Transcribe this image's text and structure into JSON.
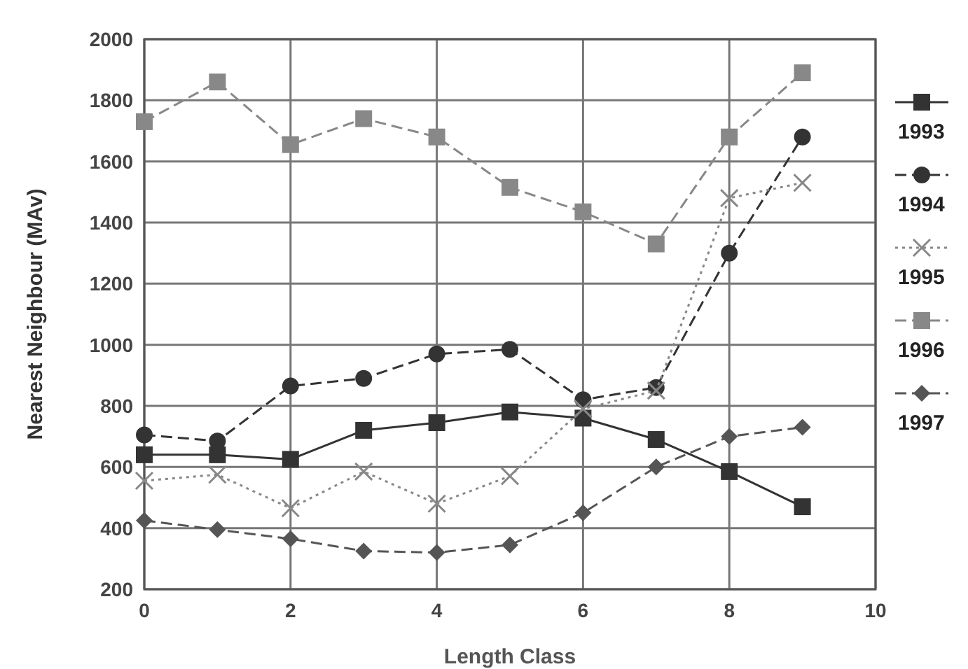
{
  "chart_data": {
    "type": "line",
    "xlabel": "Length Class",
    "ylabel": "Nearest Neighbour (MAv)",
    "x": [
      0,
      1,
      2,
      3,
      4,
      5,
      6,
      7,
      8,
      9
    ],
    "xlim": [
      0,
      10
    ],
    "xticks": [
      0,
      2,
      4,
      6,
      8,
      10
    ],
    "ylim": [
      200,
      2000
    ],
    "yticks": [
      200,
      400,
      600,
      800,
      1000,
      1200,
      1400,
      1600,
      1800,
      2000
    ],
    "grid": true,
    "legend": "right",
    "series": [
      {
        "name": "1993",
        "color": "#333333",
        "marker": "square",
        "line_style": "solid",
        "values": [
          640,
          640,
          625,
          720,
          745,
          780,
          760,
          690,
          585,
          470
        ]
      },
      {
        "name": "1994",
        "color": "#333333",
        "marker": "circle",
        "line_style": "dashed",
        "values": [
          705,
          685,
          865,
          890,
          970,
          985,
          820,
          860,
          1300,
          1680
        ]
      },
      {
        "name": "1995",
        "color": "#888888",
        "marker": "cross",
        "line_style": "dotted",
        "values": [
          555,
          575,
          465,
          585,
          480,
          570,
          790,
          850,
          1480,
          1530
        ]
      },
      {
        "name": "1996",
        "color": "#888888",
        "marker": "square",
        "line_style": "dashed",
        "values": [
          1730,
          1860,
          1655,
          1740,
          1680,
          1515,
          1435,
          1330,
          1680,
          1890
        ]
      },
      {
        "name": "1997",
        "color": "#555555",
        "marker": "diamond",
        "line_style": "dashed",
        "values": [
          425,
          395,
          365,
          325,
          320,
          345,
          450,
          600,
          700,
          730
        ]
      }
    ]
  }
}
